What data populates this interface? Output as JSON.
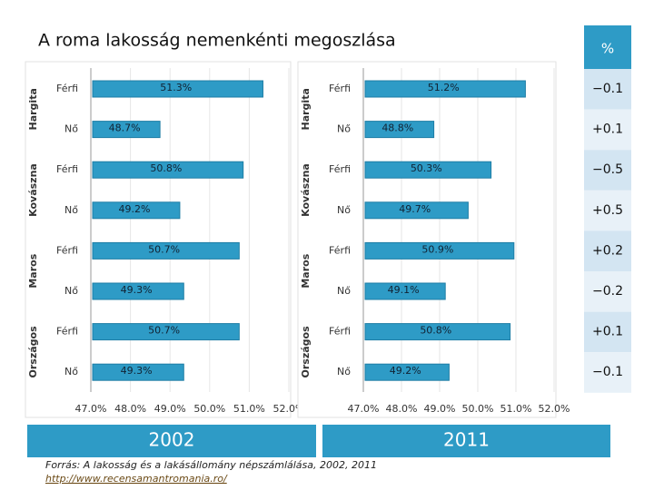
{
  "title": "A roma lakosság nemenkénti megoszlása",
  "chart_data": [
    {
      "type": "bar",
      "orientation": "horizontal",
      "title": "2002",
      "groups": [
        "Hargita",
        "Kovászna",
        "Maros",
        "Országos"
      ],
      "categories": [
        "Férfi",
        "Nő",
        "Férfi",
        "Nő",
        "Férfi",
        "Nő",
        "Férfi",
        "Nő"
      ],
      "values": [
        51.3,
        48.7,
        50.8,
        49.2,
        50.7,
        49.3,
        50.7,
        49.3
      ],
      "value_labels": [
        "51.3%",
        "48.7%",
        "50.8%",
        "49.2%",
        "50.7%",
        "49.3%",
        "50.7%",
        "49.3%"
      ],
      "color": "#2e9bc6",
      "xlim": [
        47,
        52
      ],
      "xticks": [
        {
          "value": 47,
          "label": "47.0%"
        },
        {
          "value": 48,
          "label": "48.0%"
        },
        {
          "value": 49,
          "label": "49.0%"
        },
        {
          "value": 50,
          "label": "50.0%"
        },
        {
          "value": 51,
          "label": "51.0%"
        },
        {
          "value": 52,
          "label": "52.0%"
        }
      ],
      "grid": true
    },
    {
      "type": "bar",
      "orientation": "horizontal",
      "title": "2011",
      "groups": [
        "Hargita",
        "Kovászna",
        "Maros",
        "Országos"
      ],
      "categories": [
        "Férfi",
        "Nő",
        "Férfi",
        "Nő",
        "Férfi",
        "Nő",
        "Férfi",
        "Nő"
      ],
      "values": [
        51.2,
        48.8,
        50.3,
        49.7,
        50.9,
        49.1,
        50.8,
        49.2
      ],
      "value_labels": [
        "51.2%",
        "48.8%",
        "50.3%",
        "49.7%",
        "50.9%",
        "49.1%",
        "50.8%",
        "49.2%"
      ],
      "color": "#2e9bc6",
      "xlim": [
        47,
        52
      ],
      "xticks": [
        {
          "value": 47,
          "label": "47.0%"
        },
        {
          "value": 48,
          "label": "48.0%"
        },
        {
          "value": 49,
          "label": "49.0%"
        },
        {
          "value": 50,
          "label": "50.0%"
        },
        {
          "value": 51,
          "label": "51.0%"
        },
        {
          "value": 52,
          "label": "52.0%"
        }
      ],
      "grid": true
    }
  ],
  "diff": {
    "header": "%",
    "rows": [
      "−0.1",
      "+0.1",
      "−0.5",
      "+0.5",
      "+0.2",
      "−0.2",
      "+0.1",
      "−0.1"
    ]
  },
  "source": "Forrás: A lakosság és a lakásállomány népszámlálása, 2002, 2011",
  "link": "http://www.recensamantromania.ro/"
}
